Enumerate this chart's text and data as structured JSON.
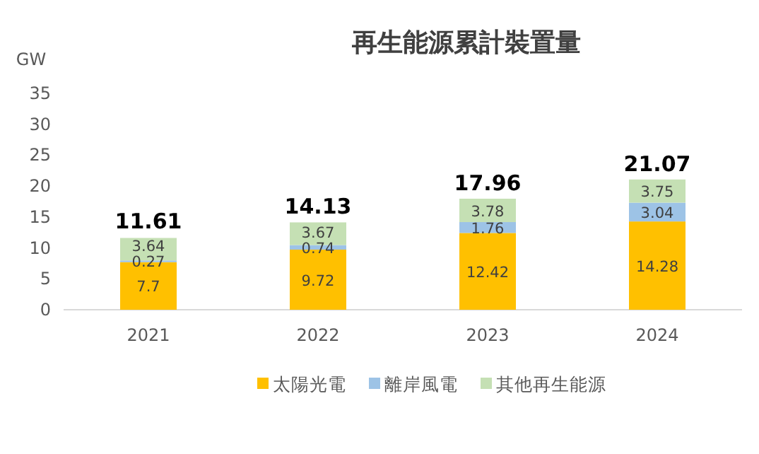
{
  "chart_data": {
    "type": "bar",
    "title": "再生能源累計裝置量",
    "ylabel": "GW",
    "stacked": true,
    "categories": [
      "2021",
      "2022",
      "2023",
      "2024"
    ],
    "series": [
      {
        "name": "太陽光電",
        "color": "#ffc000",
        "values": [
          7.7,
          9.72,
          12.42,
          14.28
        ]
      },
      {
        "name": "離岸風電",
        "color": "#9dc3e6",
        "values": [
          0.27,
          0.74,
          1.76,
          3.04
        ]
      },
      {
        "name": "其他再生能源",
        "color": "#c5e0b4",
        "values": [
          3.64,
          3.67,
          3.78,
          3.75
        ]
      }
    ],
    "ylim": [
      0,
      35
    ],
    "yticks": [
      0,
      5,
      10,
      15,
      20,
      25,
      30,
      35
    ],
    "data_labels": true,
    "totals": [
      "11.61",
      "14.13",
      "17.96",
      "21.07"
    ],
    "legend": "bottom",
    "grid": false
  }
}
